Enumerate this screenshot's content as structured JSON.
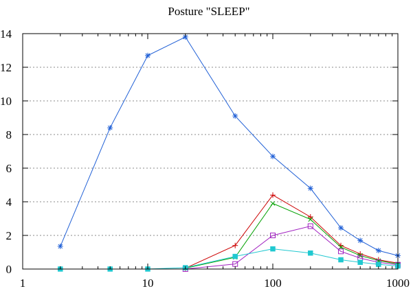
{
  "chart_data": {
    "type": "line",
    "title": "Posture \"SLEEP\"",
    "xscale": "log",
    "xlim": [
      1,
      1000
    ],
    "ylim": [
      0,
      14
    ],
    "grid": "horizontal dotted",
    "x_ticks": [
      1,
      10,
      100,
      1000
    ],
    "y_ticks": [
      0,
      2,
      4,
      6,
      8,
      10,
      12,
      14
    ],
    "series": [
      {
        "color": "#1f5fd6",
        "marker": "asterisk",
        "points": [
          [
            2,
            1.35
          ],
          [
            5,
            8.4
          ],
          [
            10,
            12.7
          ],
          [
            20,
            13.8
          ],
          [
            50,
            9.1
          ],
          [
            100,
            6.7
          ],
          [
            200,
            4.8
          ],
          [
            350,
            2.45
          ],
          [
            500,
            1.7
          ],
          [
            700,
            1.1
          ],
          [
            1000,
            0.8
          ]
        ]
      },
      {
        "color": "#cc0000",
        "marker": "plus",
        "points": [
          [
            20,
            0.05
          ],
          [
            50,
            1.4
          ],
          [
            100,
            4.4
          ],
          [
            200,
            3.1
          ],
          [
            350,
            1.4
          ],
          [
            500,
            0.9
          ],
          [
            700,
            0.55
          ],
          [
            1000,
            0.35
          ]
        ]
      },
      {
        "color": "#00a000",
        "marker": "cross",
        "points": [
          [
            20,
            0.05
          ],
          [
            50,
            0.7
          ],
          [
            100,
            3.9
          ],
          [
            200,
            2.95
          ],
          [
            350,
            1.3
          ],
          [
            500,
            0.8
          ],
          [
            700,
            0.5
          ],
          [
            1000,
            0.3
          ]
        ]
      },
      {
        "color": "#a020c0",
        "marker": "open-square",
        "points": [
          [
            20,
            0.0
          ],
          [
            50,
            0.3
          ],
          [
            100,
            2.0
          ],
          [
            200,
            2.55
          ],
          [
            350,
            1.05
          ],
          [
            500,
            0.65
          ],
          [
            700,
            0.4
          ],
          [
            1000,
            0.25
          ]
        ]
      },
      {
        "color": "#20c8d0",
        "marker": "filled-square",
        "points": [
          [
            2,
            0.0
          ],
          [
            5,
            0.0
          ],
          [
            10,
            0.0
          ],
          [
            20,
            0.08
          ],
          [
            50,
            0.75
          ],
          [
            100,
            1.2
          ],
          [
            200,
            0.95
          ],
          [
            350,
            0.55
          ],
          [
            500,
            0.4
          ],
          [
            700,
            0.28
          ],
          [
            1000,
            0.18
          ]
        ]
      }
    ]
  }
}
